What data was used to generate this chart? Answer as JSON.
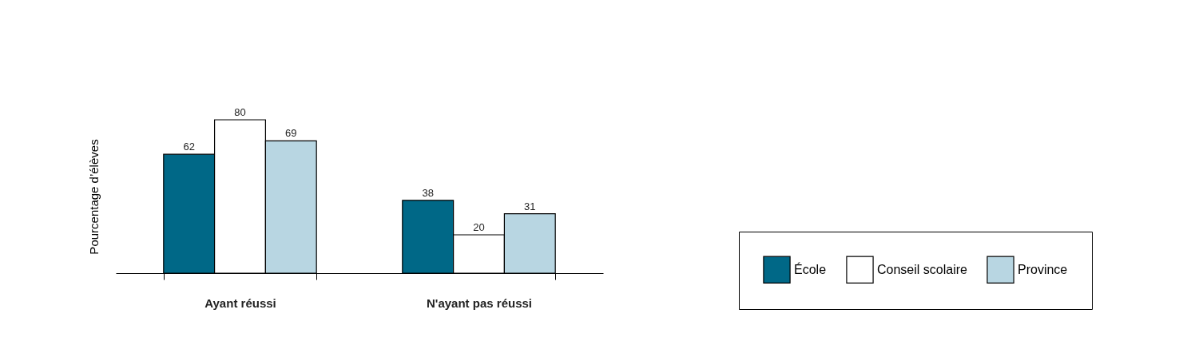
{
  "chart_data": {
    "type": "bar",
    "ylabel": "Pourcentage d’élèves",
    "categories": [
      "Ayant réussi",
      "N'ayant pas réussi"
    ],
    "series": [
      {
        "name": "École",
        "color": "#006887",
        "values": [
          62,
          38
        ]
      },
      {
        "name": "Conseil scolaire",
        "color": "#ffffff",
        "values": [
          80,
          20
        ]
      },
      {
        "name": "Province",
        "color": "#b8d6e2",
        "values": [
          69,
          31
        ]
      }
    ],
    "tick_labels": "x",
    "data_labels": true,
    "legend": "bottom right",
    "grid": false
  }
}
